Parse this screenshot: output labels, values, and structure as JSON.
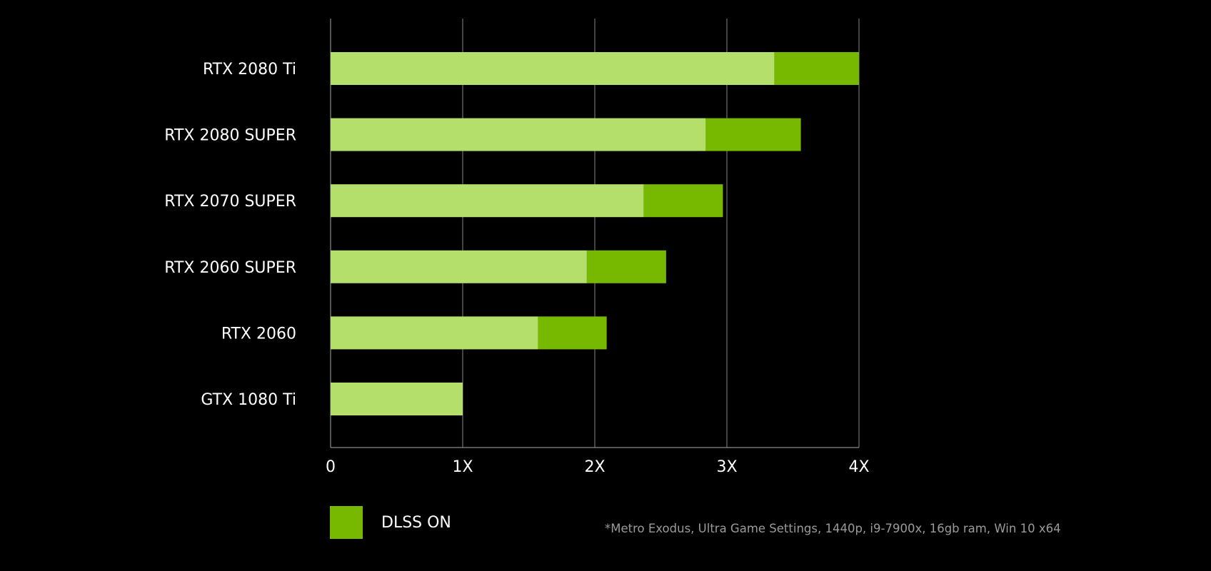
{
  "colors": {
    "background": "#000000",
    "base_bar": "#b3df6a",
    "dlss_bar": "#76b900",
    "grid": "#6e6e6e",
    "axis": "#8a8a8a",
    "text": "#ffffff",
    "footnote": "#9a9a9a"
  },
  "chart_data": {
    "type": "bar",
    "orientation": "horizontal",
    "stacked": true,
    "categories": [
      "RTX 2080 Ti",
      "RTX 2080 SUPER",
      "RTX 2070 SUPER",
      "RTX 2060 SUPER",
      "RTX 2060",
      "GTX 1080 Ti"
    ],
    "series": [
      {
        "values": [
          3.36,
          2.84,
          2.37,
          1.94,
          1.57,
          1.0
        ]
      },
      {
        "name": "DLSS ON",
        "values": [
          0.64,
          0.72,
          0.6,
          0.6,
          0.52,
          0
        ]
      }
    ],
    "xlim": [
      0,
      4
    ],
    "xticks": [
      "0",
      "1X",
      "2X",
      "3X",
      "4X"
    ],
    "grid": true,
    "legend_position": "bottom-left"
  },
  "legend": {
    "label": "DLSS ON"
  },
  "footnote": "*Metro Exodus, Ultra Game Settings, 1440p, i9-7900x, 16gb ram, Win 10 x64"
}
